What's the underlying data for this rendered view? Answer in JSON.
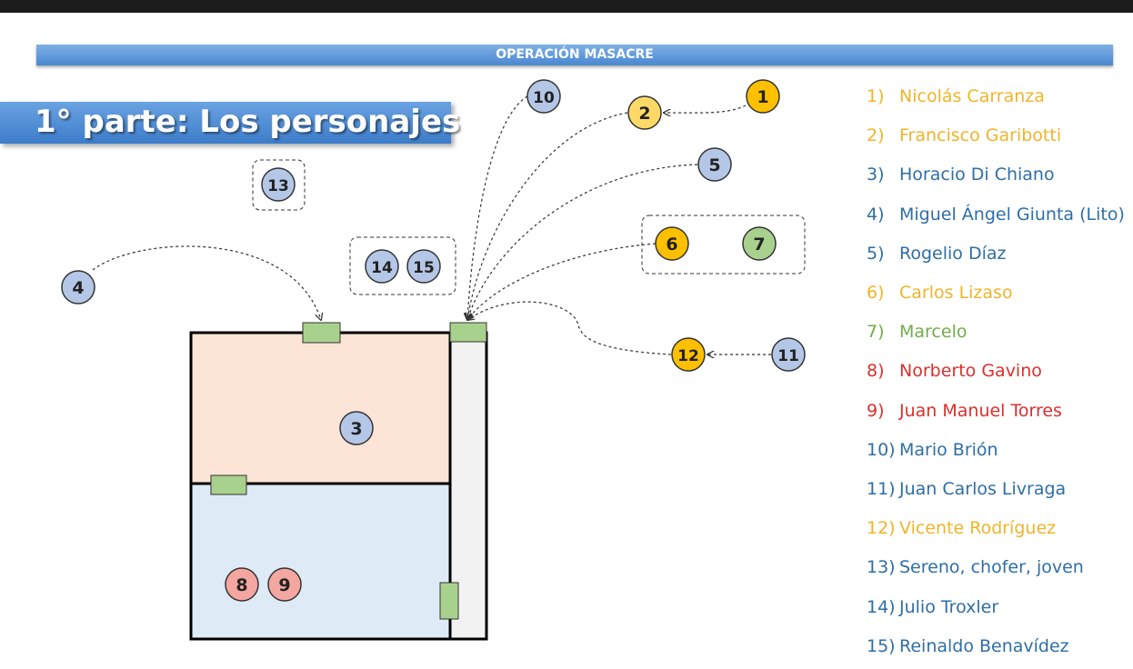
{
  "banner": {
    "text": "OPERACIÓN MASACRE"
  },
  "title": {
    "text": "1° parte: Los personajes"
  },
  "colors": {
    "blue_node": "#b4c7e7",
    "orange_node": "#ffc000",
    "yellow_node": "#ffd966",
    "green_node": "#a9d18e",
    "red_node": "#f4a6a0",
    "room_top": "#fce4d6",
    "room_bottom": "#deebf7",
    "corridor": "#f2f2f2",
    "door": "#a9d18e"
  },
  "nodes": [
    {
      "id": "1",
      "label": "1",
      "color": "orange"
    },
    {
      "id": "2",
      "label": "2",
      "color": "yellow"
    },
    {
      "id": "3",
      "label": "3",
      "color": "blue"
    },
    {
      "id": "4",
      "label": "4",
      "color": "blue"
    },
    {
      "id": "5",
      "label": "5",
      "color": "blue"
    },
    {
      "id": "6",
      "label": "6",
      "color": "orange"
    },
    {
      "id": "7",
      "label": "7",
      "color": "green"
    },
    {
      "id": "8",
      "label": "8",
      "color": "red"
    },
    {
      "id": "9",
      "label": "9",
      "color": "red"
    },
    {
      "id": "10",
      "label": "10",
      "color": "blue"
    },
    {
      "id": "11",
      "label": "11",
      "color": "blue"
    },
    {
      "id": "12",
      "label": "12",
      "color": "orange"
    },
    {
      "id": "13",
      "label": "13",
      "color": "blue"
    },
    {
      "id": "14",
      "label": "14",
      "color": "blue"
    },
    {
      "id": "15",
      "label": "15",
      "color": "blue"
    }
  ],
  "legend": [
    {
      "num": "1)",
      "name": "Nicolás Carranza",
      "color": "#f0b429"
    },
    {
      "num": "2)",
      "name": "Francisco Garibotti",
      "color": "#f0b429"
    },
    {
      "num": "3)",
      "name": "Horacio Di Chiano",
      "color": "#2e6ea6"
    },
    {
      "num": "4)",
      "name": "Miguel Ángel Giunta (Lito)",
      "color": "#2e6ea6"
    },
    {
      "num": "5)",
      "name": "Rogelio Díaz",
      "color": "#2e6ea6"
    },
    {
      "num": "6)",
      "name": "Carlos Lizaso",
      "color": "#f0b429"
    },
    {
      "num": "7)",
      "name": "Marcelo",
      "color": "#70ad47"
    },
    {
      "num": "8)",
      "name": "Norberto Gavino",
      "color": "#d9302c"
    },
    {
      "num": "9)",
      "name": "Juan Manuel Torres",
      "color": "#d9302c"
    },
    {
      "num": "10)",
      "name": "Mario Brión",
      "color": "#2e6ea6"
    },
    {
      "num": "11)",
      "name": "Juan Carlos Livraga",
      "color": "#2e6ea6"
    },
    {
      "num": "12)",
      "name": "Vicente Rodríguez",
      "color": "#f0b429"
    },
    {
      "num": "13)",
      "name": "Sereno, chofer, joven",
      "color": "#2e6ea6"
    },
    {
      "num": "14)",
      "name": "Julio Troxler",
      "color": "#2e6ea6"
    },
    {
      "num": "15)",
      "name": "Reinaldo Benavídez",
      "color": "#2e6ea6"
    }
  ]
}
